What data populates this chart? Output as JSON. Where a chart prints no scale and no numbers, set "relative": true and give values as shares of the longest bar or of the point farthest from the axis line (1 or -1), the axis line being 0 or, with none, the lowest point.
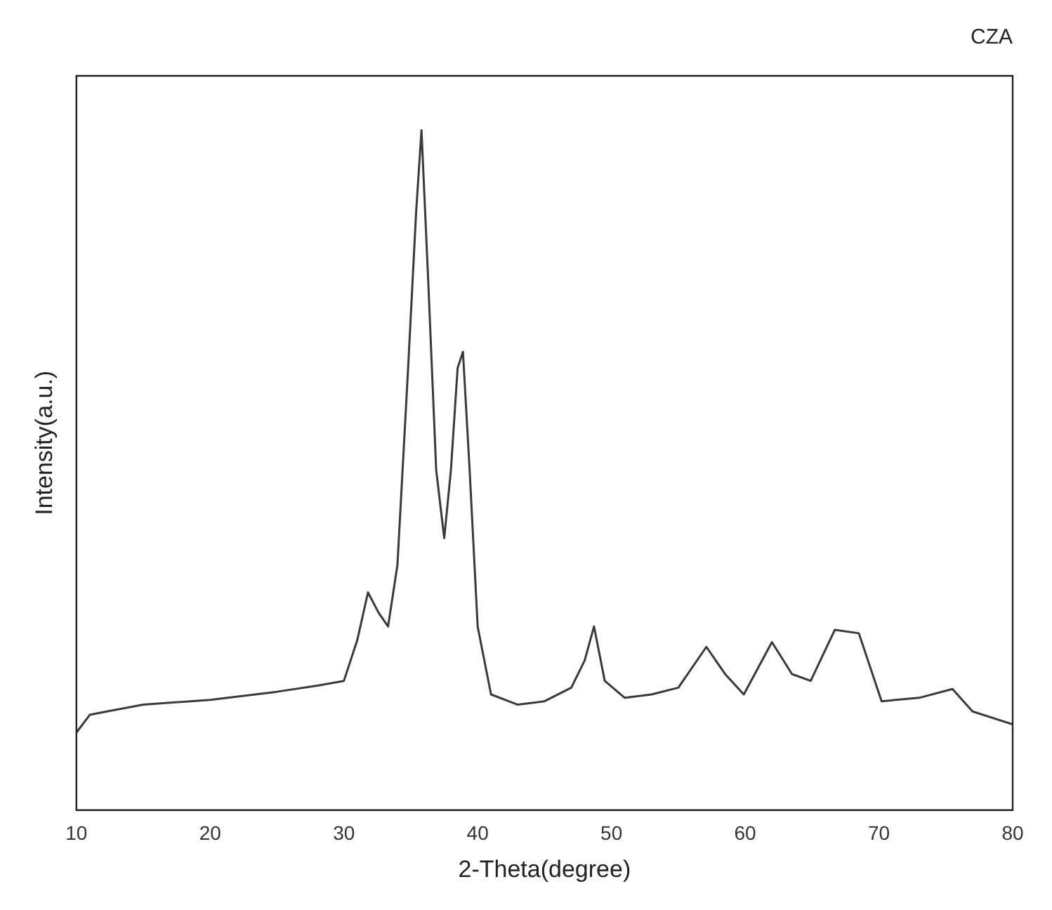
{
  "chart_data": {
    "type": "line",
    "title": "CZA",
    "xlabel": "2-Theta(degree)",
    "ylabel": "Intensity(a.u.)",
    "relative": true,
    "xlim": [
      10,
      80
    ],
    "xticks": [
      10,
      20,
      30,
      40,
      50,
      60,
      70,
      80
    ],
    "grid": false,
    "legend": false,
    "marker": "none",
    "line_style": "solid",
    "series": [
      {
        "color": "#3a3a3a",
        "x": [
          10,
          11,
          12,
          15,
          20,
          25,
          28,
          30,
          31,
          31.8,
          32.6,
          33.3,
          34,
          34.8,
          35.4,
          35.8,
          36.3,
          36.9,
          37.5,
          38,
          38.5,
          38.9,
          39.4,
          40,
          40.4,
          41,
          43,
          45,
          47,
          48,
          48.7,
          49.5,
          51,
          53,
          55,
          57.1,
          58.5,
          59.9,
          62,
          63.5,
          64.9,
          66.7,
          68.5,
          70.2,
          73,
          75.5,
          77,
          80
        ],
        "values": [
          0.114,
          0.14,
          0.144,
          0.155,
          0.162,
          0.174,
          0.183,
          0.19,
          0.25,
          0.32,
          0.29,
          0.27,
          0.36,
          0.65,
          0.88,
          1,
          0.78,
          0.5,
          0.4,
          0.5,
          0.65,
          0.674,
          0.5,
          0.27,
          0.23,
          0.17,
          0.155,
          0.16,
          0.18,
          0.22,
          0.27,
          0.19,
          0.165,
          0.17,
          0.18,
          0.24,
          0.2,
          0.17,
          0.247,
          0.2,
          0.19,
          0.265,
          0.26,
          0.16,
          0.165,
          0.178,
          0.145,
          0.126
        ]
      }
    ]
  }
}
